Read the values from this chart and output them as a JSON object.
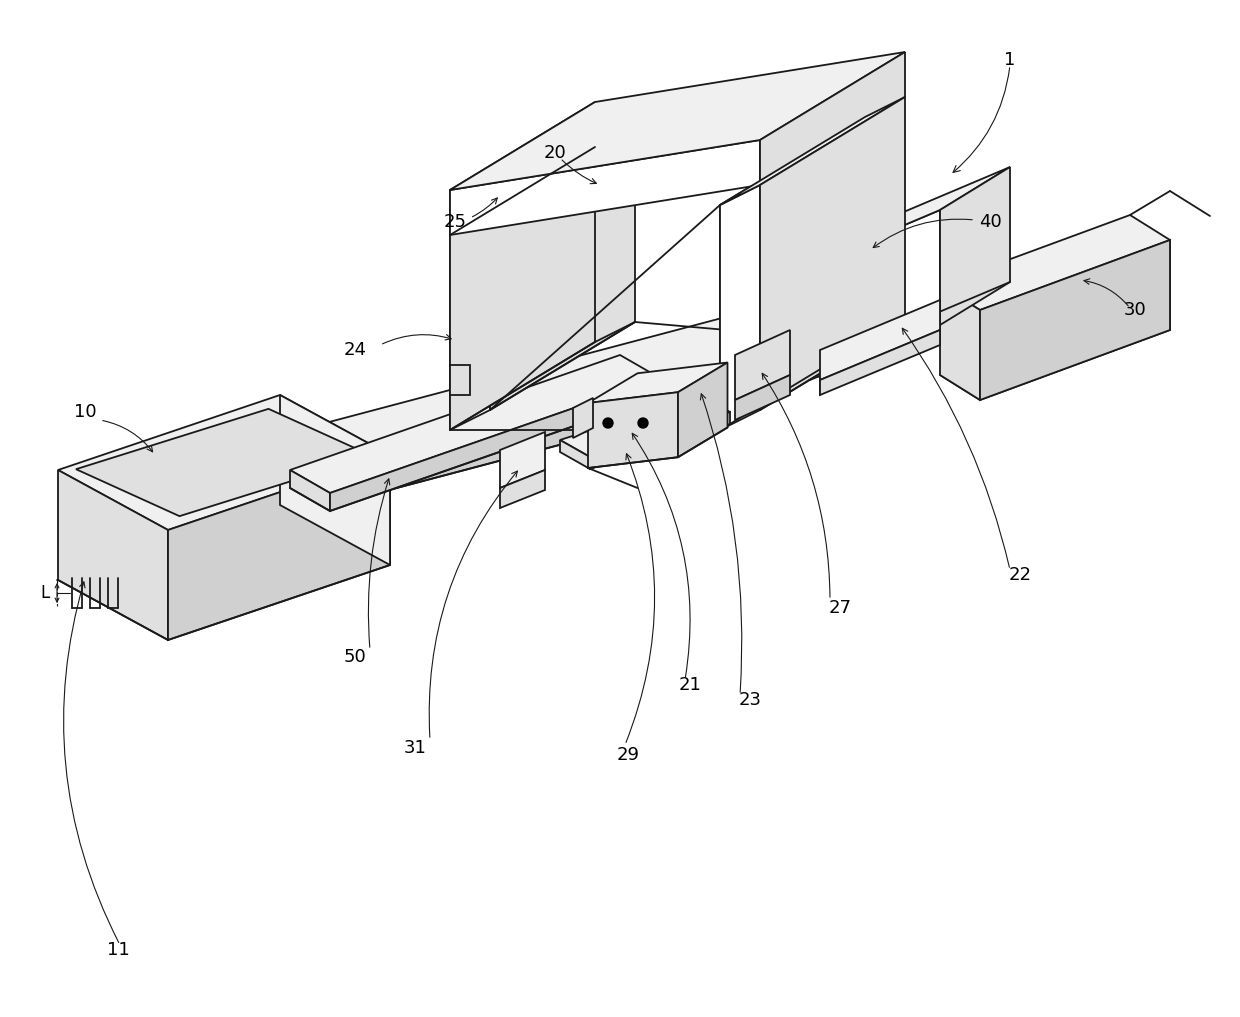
{
  "bg_color": "#ffffff",
  "edge_color": "#1a1a1a",
  "face_white": "#ffffff",
  "face_light": "#f0f0f0",
  "face_mid": "#e0e0e0",
  "face_dark": "#d0d0d0",
  "lw": 1.3,
  "lw_thin": 0.8,
  "lw_dash": 0.8,
  "fontsize": 13
}
